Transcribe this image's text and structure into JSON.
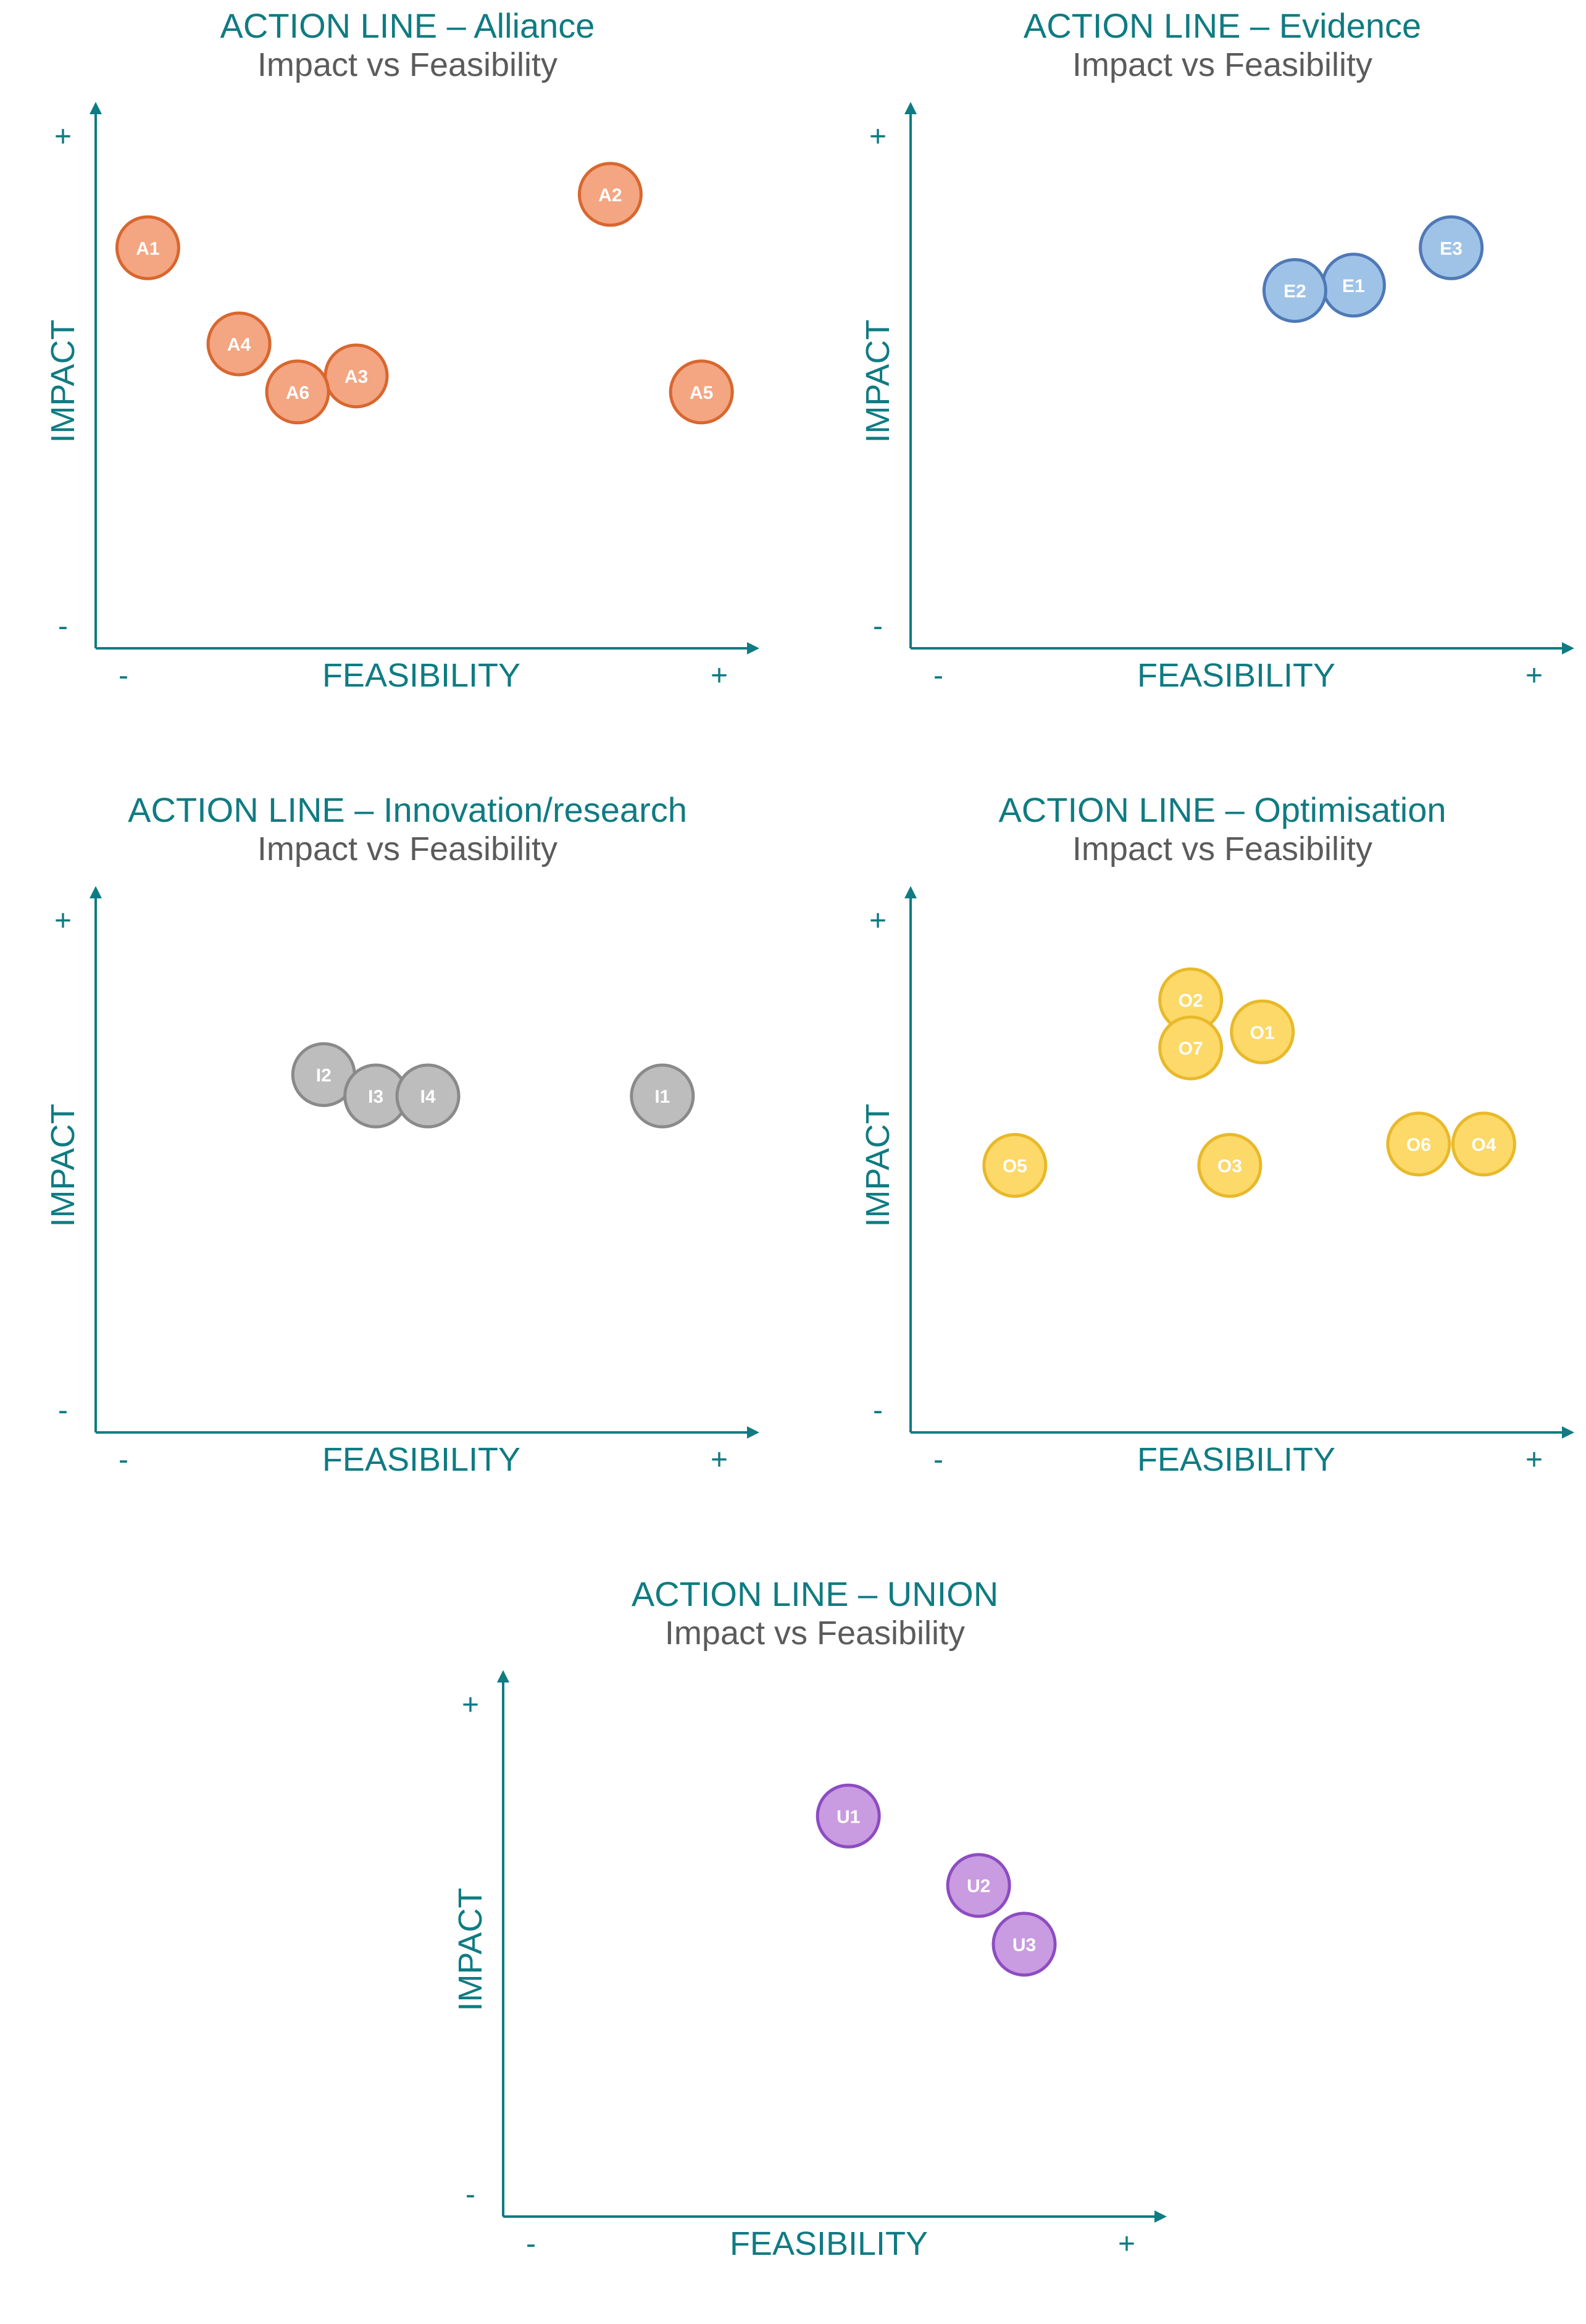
{
  "axes": {
    "x_label": "FEASIBILITY",
    "y_label": "IMPACT",
    "minus": "-",
    "plus": "+"
  },
  "chart_data": [
    {
      "type": "scatter",
      "title": "ACTION LINE – Alliance",
      "subtitle": "Impact vs Feasibility",
      "xlabel": "FEASIBILITY",
      "ylabel": "IMPACT",
      "xlim": [
        0,
        10
      ],
      "ylim": [
        0,
        10
      ],
      "color": "#f4a582",
      "stroke": "#d8672f",
      "points": [
        {
          "label": "A1",
          "x": 0.8,
          "y": 7.5
        },
        {
          "label": "A2",
          "x": 7.9,
          "y": 8.5
        },
        {
          "label": "A3",
          "x": 4.0,
          "y": 5.1
        },
        {
          "label": "A4",
          "x": 2.2,
          "y": 5.7
        },
        {
          "label": "A5",
          "x": 9.3,
          "y": 4.8
        },
        {
          "label": "A6",
          "x": 3.1,
          "y": 4.8
        }
      ]
    },
    {
      "type": "scatter",
      "title": "ACTION LINE – Evidence",
      "subtitle": "Impact vs Feasibility",
      "xlabel": "FEASIBILITY",
      "ylabel": "IMPACT",
      "xlim": [
        0,
        10
      ],
      "ylim": [
        0,
        10
      ],
      "color": "#9fc3e7",
      "stroke": "#4f79b6",
      "points": [
        {
          "label": "E1",
          "x": 6.8,
          "y": 6.8
        },
        {
          "label": "E2",
          "x": 5.9,
          "y": 6.7
        },
        {
          "label": "E3",
          "x": 8.3,
          "y": 7.5
        }
      ]
    },
    {
      "type": "scatter",
      "title": "ACTION LINE – Innovation/research",
      "subtitle": "Impact vs Feasibility",
      "xlabel": "FEASIBILITY",
      "ylabel": "IMPACT",
      "xlim": [
        0,
        10
      ],
      "ylim": [
        0,
        10
      ],
      "color": "#bdbdbd",
      "stroke": "#8a8a8a",
      "points": [
        {
          "label": "I1",
          "x": 8.7,
          "y": 6.3
        },
        {
          "label": "I2",
          "x": 3.5,
          "y": 6.7
        },
        {
          "label": "I3",
          "x": 4.3,
          "y": 6.3
        },
        {
          "label": "I4",
          "x": 5.1,
          "y": 6.3
        }
      ]
    },
    {
      "type": "scatter",
      "title": "ACTION LINE – Optimisation",
      "subtitle": "Impact vs Feasibility",
      "xlabel": "FEASIBILITY",
      "ylabel": "IMPACT",
      "xlim": [
        0,
        10
      ],
      "ylim": [
        0,
        10
      ],
      "color": "#fcd968",
      "stroke": "#e8b92a",
      "points": [
        {
          "label": "O1",
          "x": 5.4,
          "y": 7.5
        },
        {
          "label": "O2",
          "x": 4.3,
          "y": 8.1
        },
        {
          "label": "O3",
          "x": 4.9,
          "y": 5.0
        },
        {
          "label": "O4",
          "x": 8.8,
          "y": 5.4
        },
        {
          "label": "O5",
          "x": 1.6,
          "y": 5.0
        },
        {
          "label": "O6",
          "x": 7.8,
          "y": 5.4
        },
        {
          "label": "O7",
          "x": 4.3,
          "y": 7.2
        }
      ]
    },
    {
      "type": "scatter",
      "title": "ACTION LINE – UNION",
      "subtitle": "Impact vs Feasibility",
      "xlabel": "FEASIBILITY",
      "ylabel": "IMPACT",
      "xlim": [
        0,
        10
      ],
      "ylim": [
        0,
        10
      ],
      "color": "#c99be0",
      "stroke": "#8d4cc2",
      "points": [
        {
          "label": "U1",
          "x": 5.3,
          "y": 7.5
        },
        {
          "label": "U2",
          "x": 7.3,
          "y": 6.2
        },
        {
          "label": "U3",
          "x": 8.0,
          "y": 5.1
        }
      ]
    }
  ]
}
